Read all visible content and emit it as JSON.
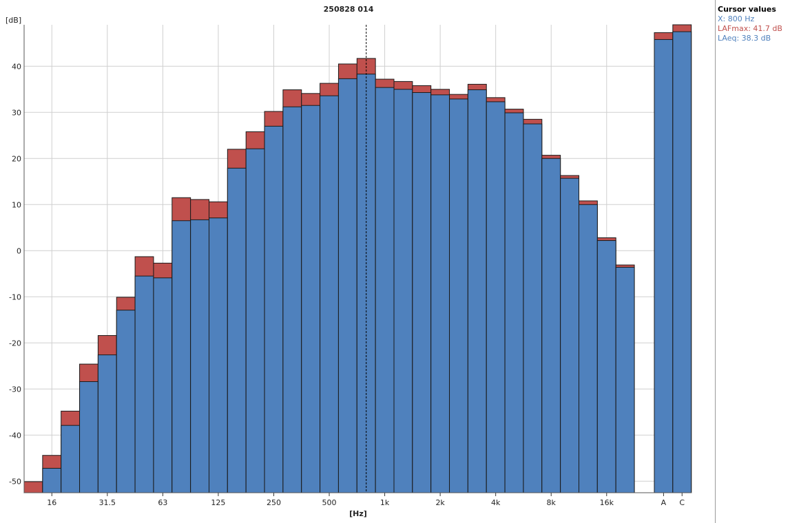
{
  "chart_data": {
    "type": "bar",
    "title": "250828 014",
    "ylabel": "[dB]",
    "xlabel": "[Hz]",
    "ylim": [
      -52.5,
      49
    ],
    "yticks": [
      -50,
      -40,
      -30,
      -20,
      -10,
      0,
      10,
      20,
      30,
      40
    ],
    "grid": true,
    "bands": [
      "12.5",
      "16",
      "20",
      "25",
      "31.5",
      "40",
      "50",
      "63",
      "80",
      "100",
      "125",
      "160",
      "200",
      "250",
      "315",
      "400",
      "500",
      "630",
      "800",
      "1k",
      "1.25k",
      "1.6k",
      "2k",
      "2.5k",
      "3.15k",
      "4k",
      "5k",
      "6.3k",
      "8k",
      "10k",
      "12.5k",
      "16k",
      "20k"
    ],
    "xtick_labels": [
      "16",
      "31.5",
      "63",
      "125",
      "250",
      "500",
      "1k",
      "2k",
      "4k",
      "8k",
      "16k"
    ],
    "series": [
      {
        "name": "LAFmax",
        "color": "#c0504d",
        "values": [
          -50.1,
          -44.4,
          -34.8,
          -24.6,
          -18.4,
          -10.1,
          -1.3,
          -2.7,
          11.5,
          11.1,
          10.6,
          22.0,
          25.8,
          30.2,
          34.9,
          34.1,
          36.3,
          40.5,
          41.7,
          37.2,
          36.7,
          35.8,
          35.0,
          33.9,
          36.1,
          33.2,
          30.7,
          28.5,
          20.7,
          16.3,
          10.8,
          2.8,
          -3.1
        ]
      },
      {
        "name": "LAeq",
        "color": "#4f81bd",
        "values": [
          -52.5,
          -47.2,
          -37.9,
          -28.4,
          -22.6,
          -12.9,
          -5.5,
          -5.9,
          6.5,
          6.7,
          7.1,
          17.9,
          22.1,
          27.0,
          31.2,
          31.5,
          33.6,
          37.3,
          38.3,
          35.4,
          35.0,
          34.3,
          33.8,
          32.9,
          34.9,
          32.3,
          29.9,
          27.5,
          20.0,
          15.7,
          10.0,
          2.2,
          -3.6
        ]
      }
    ],
    "overall": {
      "categories": [
        "A",
        "C"
      ],
      "LAFmax": [
        47.3,
        49.0
      ],
      "LAeq": [
        45.8,
        47.5
      ]
    },
    "cursor": {
      "band": "800"
    }
  },
  "cursor_panel": {
    "title": "Cursor values",
    "x_text": "X: 800 Hz",
    "lafmax_text": "LAFmax: 41.7 dB",
    "laeq_text": "LAeq: 38.3 dB",
    "x_color": "#4f81bd",
    "lafmax_color": "#c0504d",
    "laeq_color": "#4f81bd"
  }
}
